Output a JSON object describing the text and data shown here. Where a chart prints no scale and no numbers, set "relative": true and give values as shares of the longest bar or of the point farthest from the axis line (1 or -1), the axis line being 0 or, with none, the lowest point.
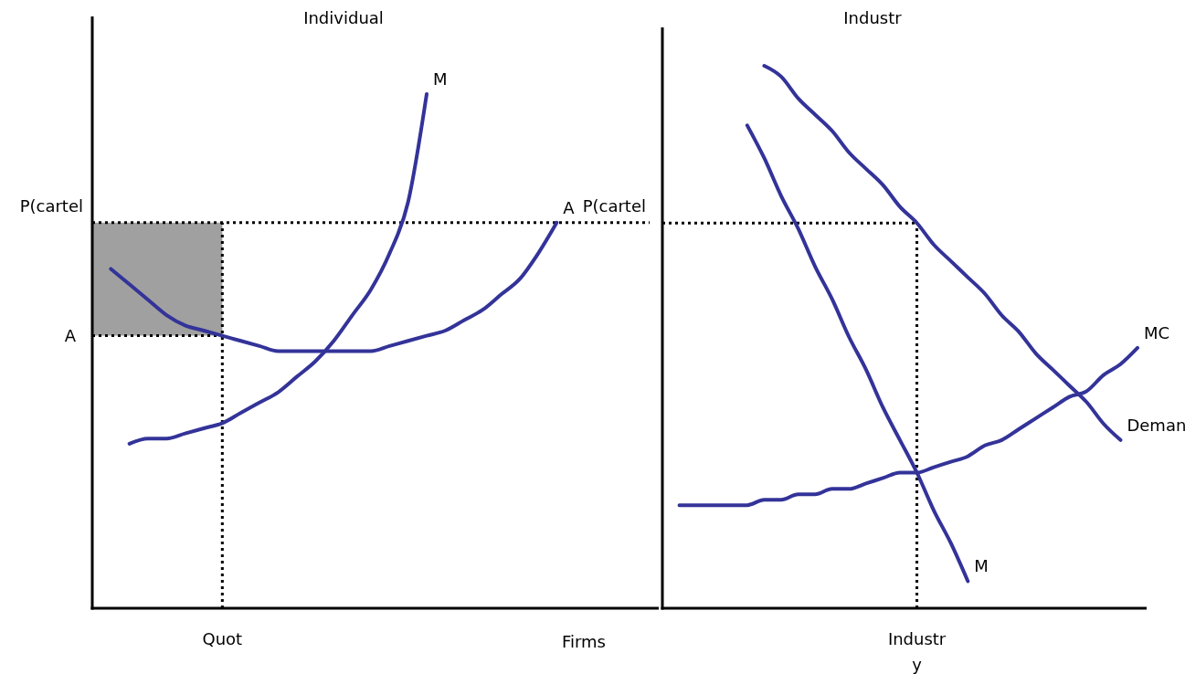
{
  "chart_data": [
    {
      "type": "line",
      "title": "Individual",
      "xlabel": "Firms",
      "relative": true,
      "legend": false,
      "categories": [
        null,
        null,
        null,
        null,
        null,
        null,
        null,
        null,
        null,
        null,
        null,
        null,
        null,
        null,
        null,
        null,
        null,
        null,
        null,
        null,
        null,
        null,
        null,
        null,
        null,
        null,
        null,
        null,
        null,
        null,
        null
      ],
      "series": [
        {
          "type": "line",
          "name": "A",
          "line_style": "dotted",
          "color": "#000000",
          "values": [
            0.53,
            0.53,
            0.53,
            0.53,
            0.53,
            0.53,
            0.53,
            0.53,
            null,
            null,
            null,
            null,
            null,
            null,
            null,
            null,
            null,
            null,
            null,
            null,
            null,
            null,
            null,
            null,
            null,
            null,
            null,
            null,
            null,
            null,
            null
          ],
          "lower": [
            0.53,
            0.53,
            0.53,
            0.53,
            0.53,
            0.53,
            0.53,
            0.53,
            null,
            null,
            null,
            null,
            null,
            null,
            null,
            null,
            null,
            null,
            null,
            null,
            null,
            null,
            null,
            null,
            null,
            null,
            null,
            null,
            null,
            null,
            null
          ],
          "upper": [
            0.75,
            0.75,
            0.75,
            0.75,
            0.75,
            0.75,
            0.75,
            0.75,
            null,
            null,
            null,
            null,
            null,
            null,
            null,
            null,
            null,
            null,
            null,
            null,
            null,
            null,
            null,
            null,
            null,
            null,
            null,
            null,
            null,
            null,
            null
          ]
        },
        {
          "type": "line",
          "name": "M",
          "color": "#333399",
          "values": [
            null,
            null,
            0.32,
            0.33,
            0.33,
            0.34,
            0.35,
            0.36,
            0.38,
            0.4,
            0.42,
            0.45,
            0.48,
            0.52,
            0.57,
            0.62,
            0.69,
            0.79,
            1,
            null,
            null,
            null,
            null,
            null,
            null,
            null,
            null,
            null,
            null,
            null,
            null
          ]
        },
        {
          "type": "line",
          "name": "A",
          "color": "#333399",
          "values": [
            null,
            0.66,
            0.63,
            0.6,
            0.57,
            0.55,
            0.54,
            0.53,
            0.52,
            0.51,
            0.5,
            0.5,
            0.5,
            0.5,
            0.5,
            0.5,
            0.51,
            0.52,
            0.53,
            0.54,
            0.56,
            0.58,
            0.61,
            0.64,
            0.69,
            0.75,
            null,
            null,
            null,
            null,
            null
          ]
        }
      ],
      "ref_lines": [
        {
          "axis": "y",
          "value": 0.75,
          "label": "P(cartel",
          "line_style": "dotted"
        }
      ],
      "annotations": [
        "Quot"
      ]
    },
    {
      "type": "line",
      "title": "Industr",
      "relative": true,
      "legend": false,
      "categories": [
        null,
        null,
        null,
        null,
        null,
        null,
        null,
        null,
        null,
        null,
        null,
        null,
        null,
        null,
        null,
        null,
        null,
        null,
        null,
        null,
        null,
        null,
        null,
        null,
        null,
        null,
        null,
        null,
        null
      ],
      "series": [
        {
          "type": "line",
          "name": "P(cartel",
          "line_style": "dotted",
          "color": "#000000",
          "values": [
            0.71,
            0.71,
            0.71,
            0.71,
            0.71,
            0.71,
            0.71,
            0.71,
            0.71,
            0.71,
            0.71,
            0.71,
            0.71,
            0.71,
            0.71,
            0.71,
            null,
            null,
            null,
            null,
            null,
            null,
            null,
            null,
            null,
            null,
            null,
            null,
            null
          ]
        },
        {
          "type": "line",
          "name": "M",
          "color": "#333399",
          "values": [
            null,
            null,
            null,
            null,
            null,
            0.89,
            0.83,
            0.76,
            0.7,
            0.63,
            0.57,
            0.5,
            0.44,
            0.37,
            0.31,
            0.25,
            0.18,
            0.12,
            0.05,
            null,
            null,
            null,
            null,
            null,
            null,
            null,
            null,
            null,
            null
          ]
        },
        {
          "type": "line",
          "name": "Deman",
          "color": "#333399",
          "values": [
            null,
            null,
            null,
            null,
            null,
            null,
            1,
            0.98,
            0.94,
            0.91,
            0.88,
            0.84,
            0.81,
            0.78,
            0.74,
            0.71,
            0.67,
            0.64,
            0.61,
            0.58,
            0.54,
            0.51,
            0.47,
            0.44,
            0.41,
            0.38,
            0.34,
            0.31,
            null
          ]
        },
        {
          "type": "line",
          "name": "MC",
          "color": "#333399",
          "values": [
            null,
            0.19,
            0.19,
            0.19,
            0.19,
            0.19,
            0.2,
            0.2,
            0.21,
            0.21,
            0.22,
            0.22,
            0.23,
            0.24,
            0.25,
            0.25,
            0.26,
            0.27,
            0.28,
            0.3,
            0.31,
            0.33,
            0.35,
            0.37,
            0.39,
            0.4,
            0.43,
            0.45,
            0.48
          ]
        }
      ],
      "annotations": [
        "Industr y"
      ]
    }
  ]
}
